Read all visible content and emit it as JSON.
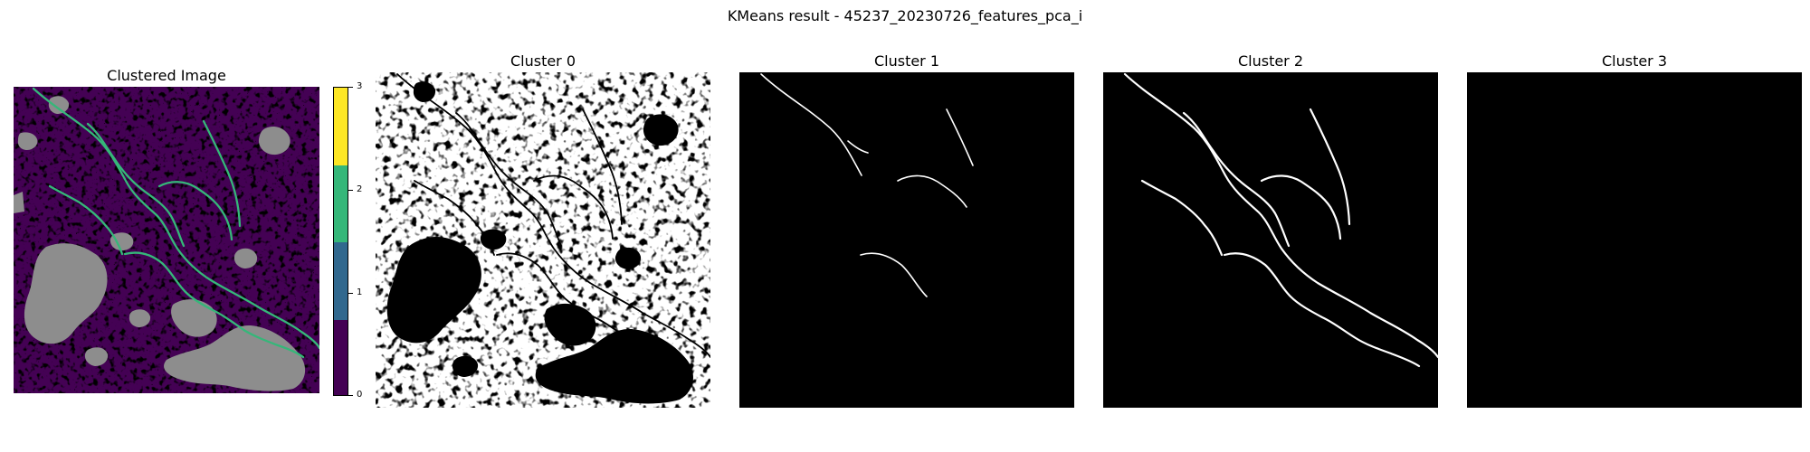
{
  "figure": {
    "title": "KMeans result - 45237_20230726_features_pca_i"
  },
  "colors": {
    "cluster_0": "#440154",
    "cluster_1": "#31688e",
    "cluster_2": "#35b779",
    "cluster_3": "#fde725",
    "nodata_gray": "#8d8d8d",
    "mask_white": "#ffffff",
    "mask_black": "#000000"
  },
  "chart_data": [
    {
      "type": "heatmap",
      "title": "Clustered Image",
      "xlabel": "",
      "ylabel": "",
      "legend": "colorbar-right",
      "grid": false,
      "colorbar": {
        "ticks": [
          {
            "value": 0,
            "label": "0"
          },
          {
            "value": 1,
            "label": "1"
          },
          {
            "value": 2,
            "label": "2"
          },
          {
            "value": 3,
            "label": "3"
          }
        ],
        "range": [
          0,
          3
        ],
        "colors": [
          "#440154",
          "#31688e",
          "#35b779",
          "#fde725"
        ]
      },
      "cluster_values": [
        0,
        1,
        2,
        3
      ]
    },
    {
      "type": "heatmap",
      "title": "Cluster 0",
      "cluster_value": 0,
      "grid": false
    },
    {
      "type": "heatmap",
      "title": "Cluster 1",
      "cluster_value": 1,
      "grid": false
    },
    {
      "type": "heatmap",
      "title": "Cluster 2",
      "cluster_value": 2,
      "grid": false
    },
    {
      "type": "heatmap",
      "title": "Cluster 3",
      "cluster_value": 3,
      "grid": false
    }
  ]
}
